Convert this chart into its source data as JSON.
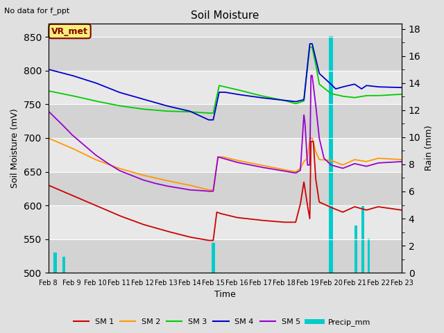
{
  "title": "Soil Moisture",
  "no_data_text": "No data for f_ppt",
  "station_label": "VR_met",
  "ylabel_left": "Soil Moisture (mV)",
  "ylabel_right": "Rain (mm)",
  "xlabel": "Time",
  "ylim_left": [
    500,
    870
  ],
  "ylim_right": [
    0,
    18.4
  ],
  "yticks_left": [
    500,
    550,
    600,
    650,
    700,
    750,
    800,
    850
  ],
  "yticks_right": [
    0,
    2,
    4,
    6,
    8,
    10,
    12,
    14,
    16,
    18
  ],
  "background_color": "#e0e0e0",
  "plot_bg_color": "#e0e0e0",
  "stripe_color": "#cccccc",
  "grid_color": "#ffffff",
  "colors": {
    "SM1": "#cc0000",
    "SM2": "#ff9900",
    "SM3": "#00cc00",
    "SM4": "#0000cc",
    "SM5": "#9900cc",
    "Precip": "#00cccc"
  },
  "legend_labels": [
    "SM 1",
    "SM 2",
    "SM 3",
    "SM 4",
    "SM 5",
    "Precip_mm"
  ],
  "xtick_labels": [
    "Feb 8",
    "Feb 9",
    "Feb 10",
    "Feb 11",
    "Feb 12",
    "Feb 13",
    "Feb 14",
    "Feb 15",
    "Feb 16",
    "Feb 17",
    "Feb 18",
    "Feb 19",
    "Feb 20",
    "Feb 21",
    "Feb 22",
    "Feb 23"
  ]
}
